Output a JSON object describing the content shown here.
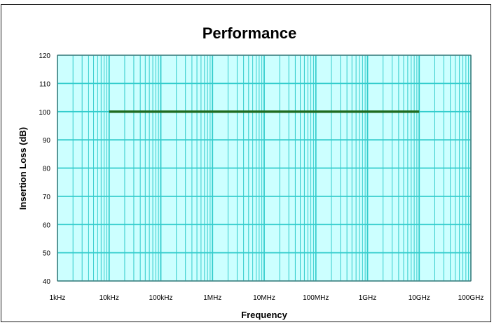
{
  "chart_data": {
    "type": "line",
    "title": "Performance",
    "xlabel": "Frequency",
    "ylabel": "Insertion Loss (dB)",
    "x_scale": "log",
    "x_ticks": [
      {
        "value": 1000,
        "label": "1kHz"
      },
      {
        "value": 10000,
        "label": "10kHz"
      },
      {
        "value": 100000,
        "label": "100kHz"
      },
      {
        "value": 1000000,
        "label": "1MHz"
      },
      {
        "value": 10000000,
        "label": "10MHz"
      },
      {
        "value": 100000000,
        "label": "100MHz"
      },
      {
        "value": 1000000000,
        "label": "1GHz"
      },
      {
        "value": 10000000000,
        "label": "10GHz"
      },
      {
        "value": 100000000000,
        "label": "100GHz"
      }
    ],
    "xlim": [
      1000,
      100000000000
    ],
    "y_ticks": [
      40,
      50,
      60,
      70,
      80,
      90,
      100,
      110,
      120
    ],
    "ylim": [
      40,
      120
    ],
    "grid": true,
    "plot_background": "#ccffff",
    "grid_color": "#33cccc",
    "series": [
      {
        "color": "#1f6b1f",
        "x": [
          10000,
          10000000000
        ],
        "y": [
          100,
          100
        ]
      }
    ]
  }
}
